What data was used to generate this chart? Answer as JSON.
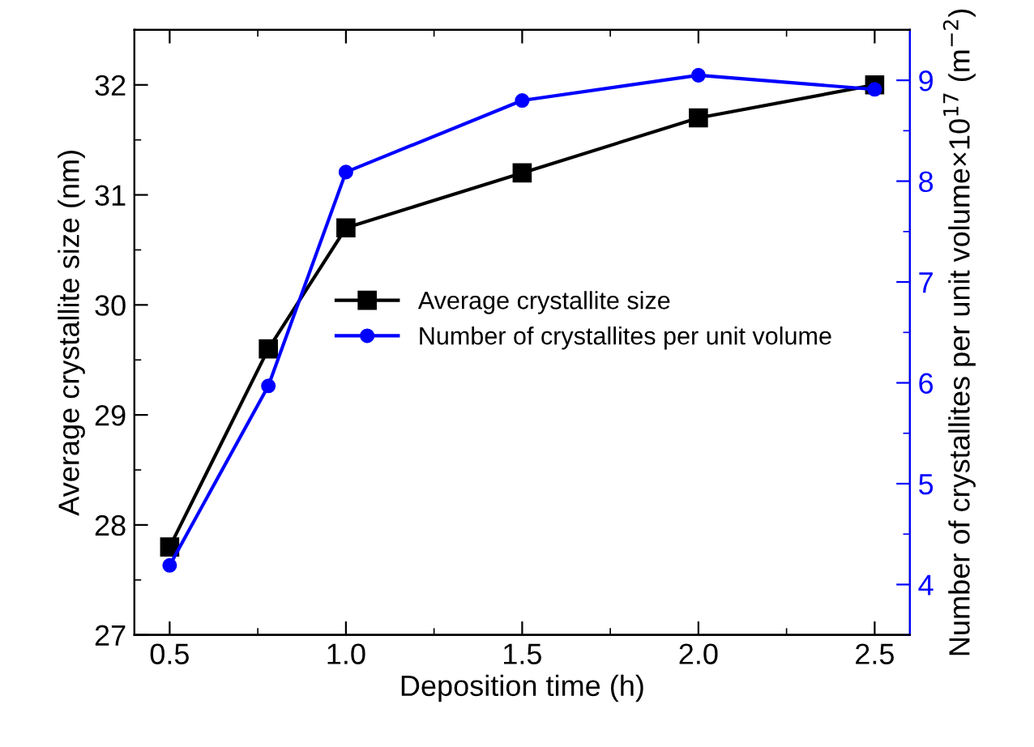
{
  "chart_data": {
    "type": "line",
    "xlabel": "Deposition time (h)",
    "ylabel": "Average crystallite size (nm)",
    "y2label": "Number of crystallites per unit volume×10$^{17}$ (m$^{−2}$)",
    "x": [
      0.5,
      0.78,
      1.0,
      1.5,
      2.0,
      2.5
    ],
    "series": [
      {
        "name": "Average crystallite size",
        "color": "#000000",
        "marker": "square",
        "values": [
          27.8,
          29.6,
          30.7,
          31.2,
          31.7,
          32.0
        ]
      },
      {
        "name": "Number of crystallites per unit volume",
        "color": "#0000ff",
        "marker": "circle",
        "axis": "y2",
        "values": [
          4.19,
          5.97,
          8.09,
          8.8,
          9.05,
          8.91
        ]
      }
    ],
    "xlim": [
      0.4,
      2.6
    ],
    "xticks": [
      {
        "value": 0.5,
        "label": "0.5"
      },
      {
        "value": 1.0,
        "label": "1.0"
      },
      {
        "value": 1.5,
        "label": "1.5"
      },
      {
        "value": 2.0,
        "label": "2.0"
      },
      {
        "value": 2.5,
        "label": "2.5"
      }
    ],
    "ylim": [
      27,
      32.5
    ],
    "yticks": [
      27,
      28,
      29,
      30,
      31,
      32
    ],
    "y2lim": [
      3.5,
      9.5
    ],
    "y2ticks": [
      4,
      5,
      6,
      7,
      8,
      9
    ],
    "legend": "center",
    "grid": false
  }
}
